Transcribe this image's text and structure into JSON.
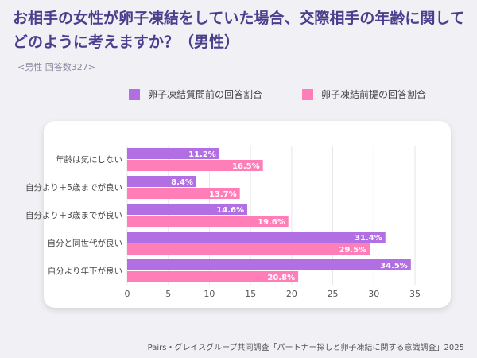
{
  "title": "お相手の女性が卵子凍結をしていた場合、交際相手の年齢に関してどのように考えますか？（男性）",
  "subtitle": "<男性 回答数327>",
  "source": "Pairs・グレイスグループ共同調査「パートナー探しと卵子凍結に関する意識調査」2025",
  "colors": {
    "series_1": "#b26fe3",
    "series_2": "#ff7eb8",
    "title": "#4a3f8c",
    "background": "#f1f0f4"
  },
  "chart_data": {
    "type": "bar",
    "orientation": "horizontal",
    "categories": [
      "年齢は気にしない",
      "自分より＋5歳までが良い",
      "自分より＋3歳までが良い",
      "自分と同世代が良い",
      "自分より年下が良い"
    ],
    "series": [
      {
        "name": "卵子凍結質問前の回答割合",
        "values": [
          11.2,
          8.4,
          14.6,
          31.4,
          34.5
        ],
        "labels": [
          "11.2%",
          "8.4%",
          "14.6%",
          "31.4%",
          "34.5%"
        ]
      },
      {
        "name": "卵子凍結前提の回答割合",
        "values": [
          16.5,
          13.7,
          19.6,
          29.5,
          20.8
        ],
        "labels": [
          "16.5%",
          "13.7%",
          "19.6%",
          "29.5%",
          "20.8%"
        ]
      }
    ],
    "xlim": [
      0,
      35
    ],
    "xticks": [
      "0",
      "5",
      "10",
      "15",
      "20",
      "25",
      "30",
      "35"
    ],
    "grid": true,
    "legend": "top"
  }
}
